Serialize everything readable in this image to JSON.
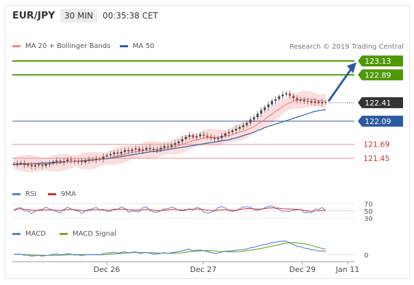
{
  "header": {
    "symbol": "EUR/JPY",
    "timeframe": "30 MIN",
    "time": "00:35:38 CET"
  },
  "legend_main": [
    {
      "label": "MA 20 + Bollinger Bands",
      "color": "#f08080"
    },
    {
      "label": "MA 50",
      "color": "#2c5aa0"
    }
  ],
  "credit": "Research © 2019 Trading Central",
  "legend_rsi": [
    {
      "label": "RSI",
      "color": "#5b7fd6"
    },
    {
      "label": "9MA",
      "color": "#d9262c"
    }
  ],
  "legend_macd": [
    {
      "label": "MACD",
      "color": "#5b7fd6"
    },
    {
      "label": "MACD Signal",
      "color": "#6aab2a"
    }
  ],
  "colors": {
    "resistance_green": "#4e9a06",
    "support_red": "#f28a8a",
    "ma50_blue": "#2c5aa0",
    "current_price_dark": "#333333",
    "arrow_blue": "#2c5aa0",
    "bollinger_fill": "#fbd3d3"
  },
  "chart_data": {
    "type": "candlestick",
    "instrument": "EUR/JPY",
    "interval": "30 MIN",
    "x_tick_labels": [
      "Dec 26",
      "Dec 27",
      "Dec 29",
      "Jan 11"
    ],
    "price_ylim": [
      121.2,
      123.35
    ],
    "levels": [
      {
        "value": 123.13,
        "label": "123.13",
        "kind": "resistance"
      },
      {
        "value": 122.89,
        "label": "122.89",
        "kind": "resistance"
      },
      {
        "value": 122.41,
        "label": "122.41",
        "kind": "current"
      },
      {
        "value": 122.09,
        "label": "122.09",
        "kind": "pivot"
      },
      {
        "value": 121.69,
        "label": "121.69",
        "kind": "support"
      },
      {
        "value": 121.45,
        "label": "121.45",
        "kind": "support"
      }
    ],
    "price_series": [
      121.35,
      121.36,
      121.37,
      121.33,
      121.34,
      121.31,
      121.33,
      121.34,
      121.32,
      121.35,
      121.36,
      121.39,
      121.41,
      121.38,
      121.4,
      121.43,
      121.41,
      121.39,
      121.4,
      121.38,
      121.41,
      121.43,
      121.42,
      121.44,
      121.43,
      121.48,
      121.5,
      121.52,
      121.55,
      121.53,
      121.56,
      121.59,
      121.57,
      121.6,
      121.62,
      121.58,
      121.6,
      121.63,
      121.61,
      121.59,
      121.6,
      121.63,
      121.66,
      121.65,
      121.68,
      121.71,
      121.74,
      121.78,
      121.82,
      121.85,
      121.81,
      121.83,
      121.86,
      121.84,
      121.82,
      121.8,
      121.78,
      121.8,
      121.84,
      121.88,
      121.9,
      121.93,
      121.96,
      121.99,
      122.02,
      122.06,
      122.12,
      122.16,
      122.22,
      122.28,
      122.33,
      122.38,
      122.44,
      122.47,
      122.52,
      122.55,
      122.57,
      122.53,
      122.49,
      122.45,
      122.46,
      122.43,
      122.44,
      122.41,
      122.43,
      122.4,
      122.42,
      122.41
    ],
    "ma50": [
      121.34,
      121.34,
      121.35,
      121.35,
      121.35,
      121.36,
      121.36,
      121.36,
      121.37,
      121.37,
      121.37,
      121.38,
      121.38,
      121.38,
      121.39,
      121.39,
      121.39,
      121.4,
      121.4,
      121.41,
      121.41,
      121.42,
      121.42,
      121.43,
      121.43,
      121.44,
      121.44,
      121.45,
      121.46,
      121.47,
      121.48,
      121.49,
      121.5,
      121.51,
      121.52,
      121.53,
      121.54,
      121.55,
      121.56,
      121.57,
      121.57,
      121.58,
      121.59,
      121.6,
      121.61,
      121.62,
      121.63,
      121.64,
      121.65,
      121.66,
      121.67,
      121.68,
      121.69,
      121.7,
      121.71,
      121.72,
      121.73,
      121.74,
      121.75,
      121.76,
      121.77,
      121.79,
      121.8,
      121.82,
      121.84,
      121.86,
      121.88,
      121.9,
      121.93,
      121.95,
      121.98,
      122.0,
      122.02,
      122.04,
      122.06,
      122.08,
      122.1,
      122.12,
      122.14,
      122.16,
      122.18,
      122.2,
      122.22,
      122.24,
      122.26,
      122.27,
      122.28,
      122.29
    ],
    "ma20": [
      121.37,
      121.36,
      121.36,
      121.36,
      121.36,
      121.36,
      121.35,
      121.35,
      121.35,
      121.35,
      121.35,
      121.36,
      121.37,
      121.37,
      121.38,
      121.39,
      121.39,
      121.4,
      121.4,
      121.4,
      121.4,
      121.41,
      121.41,
      121.42,
      121.43,
      121.44,
      121.45,
      121.46,
      121.48,
      121.49,
      121.51,
      121.52,
      121.54,
      121.55,
      121.56,
      121.57,
      121.58,
      121.59,
      121.59,
      121.6,
      121.6,
      121.61,
      121.62,
      121.63,
      121.64,
      121.65,
      121.67,
      121.69,
      121.71,
      121.73,
      121.75,
      121.77,
      121.78,
      121.8,
      121.81,
      121.81,
      121.81,
      121.81,
      121.82,
      121.83,
      121.84,
      121.86,
      121.88,
      121.9,
      121.92,
      121.94,
      121.97,
      122.0,
      122.04,
      122.08,
      122.12,
      122.17,
      122.21,
      122.26,
      122.3,
      122.34,
      122.38,
      122.41,
      122.43,
      122.45,
      122.46,
      122.47,
      122.47,
      122.47,
      122.46,
      122.45,
      122.44,
      122.43
    ],
    "rsi_levels": [
      "70",
      "50",
      "30"
    ],
    "macd_levels": [
      "0"
    ],
    "forecast_arrow": {
      "from": 122.41,
      "to": 123.13
    }
  }
}
